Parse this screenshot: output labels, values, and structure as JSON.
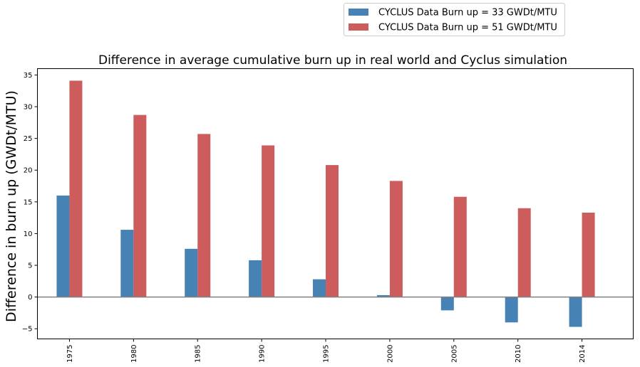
{
  "chart_data": {
    "type": "bar",
    "title": "Difference in average cumulative burn up in real world and Cyclus simulation",
    "xlabel": "",
    "ylabel": "Difference in burn up (GWDt/MTU)",
    "categories": [
      "1975",
      "1980",
      "1985",
      "1990",
      "1995",
      "2000",
      "2005",
      "2010",
      "2014"
    ],
    "series": [
      {
        "name": "CYCLUS Data Burn up = 33 GWDt/MTU",
        "color": "#4682b4",
        "values": [
          16.0,
          10.6,
          7.6,
          5.8,
          2.8,
          0.3,
          -2.1,
          -4.0,
          -4.7
        ]
      },
      {
        "name": "CYCLUS Data Burn up = 51 GWDt/MTU",
        "color": "#cd5c5c",
        "values": [
          34.1,
          28.7,
          25.7,
          23.9,
          20.8,
          18.3,
          15.8,
          14.0,
          13.3
        ]
      }
    ],
    "ylim": [
      -6.6,
      36.0
    ],
    "yticks": [
      "35",
      "30",
      "25",
      "20",
      "15",
      "10",
      "5",
      "0",
      "−5"
    ],
    "ytick_values": [
      35,
      30,
      25,
      20,
      15,
      10,
      5,
      0,
      -5
    ],
    "zero_line": true,
    "grid": false,
    "legend_position": "top-right, above plot"
  }
}
